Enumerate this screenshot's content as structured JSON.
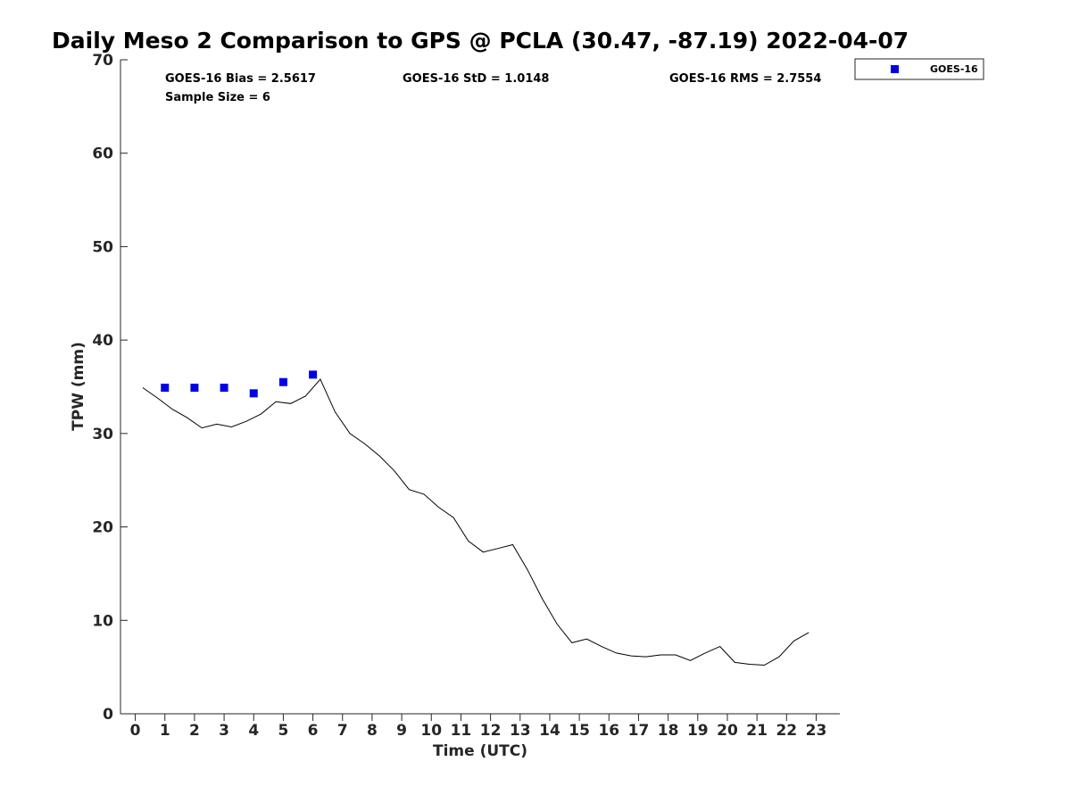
{
  "chart_data": {
    "type": "line",
    "title": "Daily Meso 2 Comparison to GPS @ PCLA (30.47, -87.19) 2022-04-07",
    "xlabel": "Time (UTC)",
    "ylabel": "TPW (mm)",
    "xlim": [
      -0.5,
      23.8
    ],
    "ylim": [
      0,
      70
    ],
    "xticks": [
      "0",
      "1",
      "2",
      "3",
      "4",
      "5",
      "6",
      "7",
      "8",
      "9",
      "10",
      "11",
      "12",
      "13",
      "14",
      "15",
      "16",
      "17",
      "18",
      "19",
      "20",
      "21",
      "22",
      "23"
    ],
    "yticks": [
      "0",
      "10",
      "20",
      "30",
      "40",
      "50",
      "60",
      "70"
    ],
    "grid": false,
    "legend_position": "top-right",
    "stats": {
      "bias": "GOES-16 Bias = 2.5617",
      "std": "GOES-16 StD = 1.0148",
      "rms": "GOES-16 RMS = 2.7554",
      "sample": "Sample Size = 6"
    },
    "series": [
      {
        "type": "line",
        "color": "#000000",
        "x": [
          0.25,
          0.75,
          1.25,
          1.75,
          2.25,
          2.75,
          3.25,
          3.75,
          4.25,
          4.75,
          5.25,
          5.75,
          6.25,
          6.75,
          7.25,
          7.75,
          8.25,
          8.75,
          9.25,
          9.75,
          10.25,
          10.75,
          11.25,
          11.75,
          12.25,
          12.75,
          13.25,
          13.75,
          14.25,
          14.75,
          15.25,
          15.75,
          16.25,
          16.75,
          17.25,
          17.75,
          18.25,
          18.75,
          19.25,
          19.75,
          20.25,
          20.75,
          21.25,
          21.75,
          22.25,
          22.75
        ],
        "values": [
          34.9,
          33.8,
          32.6,
          31.7,
          30.6,
          31.0,
          30.7,
          31.3,
          32.1,
          33.4,
          33.2,
          34.0,
          35.8,
          32.3,
          30.0,
          28.9,
          27.6,
          26.0,
          24.0,
          23.5,
          22.1,
          21.0,
          18.5,
          17.3,
          17.7,
          18.1,
          15.4,
          12.3,
          9.6,
          7.6,
          8.0,
          7.2,
          6.5,
          6.2,
          6.1,
          6.3,
          6.3,
          5.7,
          6.5,
          7.2,
          5.5,
          5.3,
          5.2,
          6.1,
          7.8,
          8.7
        ]
      },
      {
        "name": "GOES-16",
        "type": "scatter",
        "color": "#0000e6",
        "x": [
          1,
          2,
          3,
          4,
          5,
          6
        ],
        "values": [
          34.9,
          34.9,
          34.9,
          34.3,
          35.5,
          36.3
        ]
      }
    ]
  }
}
